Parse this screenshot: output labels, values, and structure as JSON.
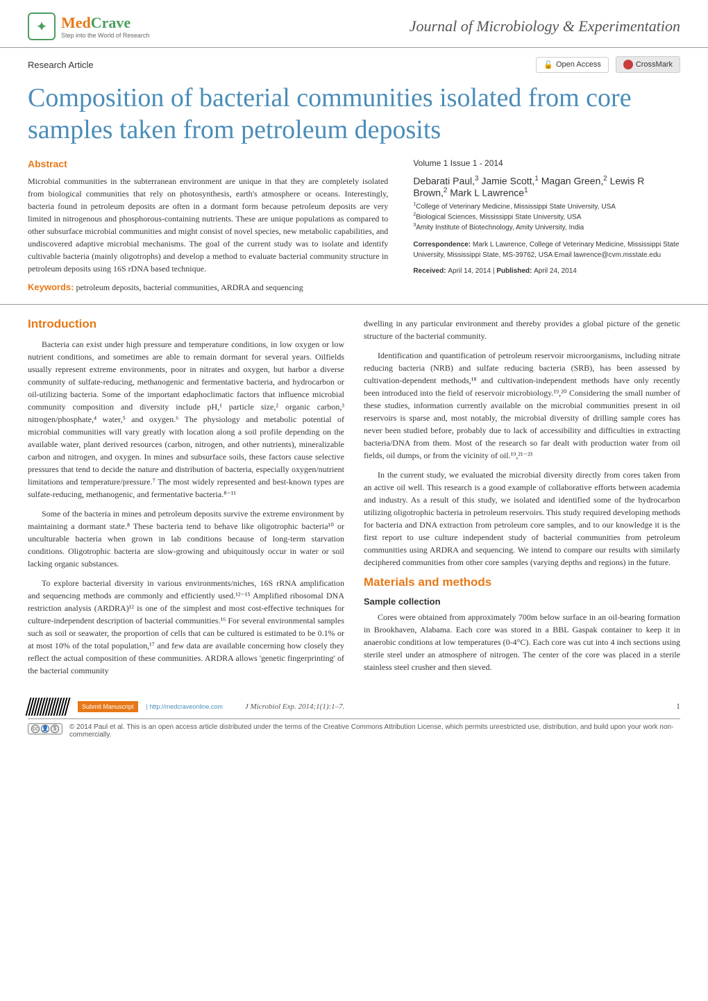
{
  "header": {
    "logo_med": "Med",
    "logo_crave": "Crave",
    "logo_tagline": "Step into the World of Research",
    "journal_name": "Journal of Microbiology & Experimentation"
  },
  "subheader": {
    "article_type": "Research Article",
    "open_access": "Open Access",
    "crossmark": "CrossMark"
  },
  "title": "Composition of bacterial communities isolated from core samples taken from petroleum deposits",
  "abstract": {
    "heading": "Abstract",
    "text": "Microbial communities in the subterranean environment are unique in that they are completely isolated from biological communities that rely on photosynthesis, earth's atmosphere or oceans. Interestingly, bacteria found in petroleum deposits are often in a dormant form because petroleum deposits are very limited in nitrogenous and phosphorous-containing nutrients. These are unique populations as compared to other subsurface microbial communities and might consist of novel species, new metabolic capabilities, and undiscovered adaptive microbial mechanisms. The goal of the current study was to isolate and identify cultivable bacteria (mainly oligotrophs) and develop a method to evaluate bacterial community structure in petroleum deposits using 16S rDNA based technique.",
    "keywords_label": "Keywords:",
    "keywords": " petroleum deposits, bacterial communities, ARDRA and sequencing"
  },
  "meta": {
    "volume_issue": "Volume 1 Issue 1 - 2014",
    "authors_html": "Debarati Paul,<sup>3</sup> Jamie Scott,<sup>1</sup> Magan Green,<sup>2</sup> Lewis R Brown,<sup>2</sup> Mark L Lawrence<sup>1</sup>",
    "affiliations_html": "<sup>1</sup>College of Veterinary Medicine, Mississippi State University, USA<br><sup>2</sup>Biological Sciences, Mississippi State University, USA<br><sup>3</sup>Amity Institute of Biotechnology, Amity University, India",
    "correspondence_label": "Correspondence: ",
    "correspondence": "Mark L Lawrence, College of Veterinary Medicine, Mississippi State University, Mississippi State, MS-39762, USA Email lawrence@cvm.msstate.edu",
    "received_label": "Received: ",
    "received": "April 14, 2014 | ",
    "published_label": "Published: ",
    "published": "April 24, 2014"
  },
  "body": {
    "intro_heading": "Introduction",
    "intro_p1": "Bacteria can exist under high pressure and temperature conditions, in low oxygen or low nutrient conditions, and sometimes are able to remain dormant for several years. Oilfields usually represent extreme environments, poor in nitrates and oxygen, but harbor a diverse community of sulfate-reducing, methanogenic and fermentative bacteria, and hydrocarbon or oil-utilizing bacteria. Some of the important edaphoclimatic factors that influence microbial community composition and diversity include pH,¹ particle size,² organic carbon,³ nitrogen/phosphate,⁴ water,⁵ and oxygen.⁶ The physiology and metabolic potential of microbial communities will vary greatly with location along a soil profile depending on the available water, plant derived resources (carbon, nitrogen, and other nutrients), mineralizable carbon and nitrogen, and oxygen. In mines and subsurface soils, these factors cause selective pressures that tend to decide the nature and distribution of bacteria, especially oxygen/nutrient limitations and temperature/pressure.⁷ The most widely represented and best-known types are sulfate-reducing, methanogenic, and fermentative bacteria.⁸⁻¹¹",
    "intro_p2": "Some of the bacteria in mines and petroleum deposits survive the extreme environment by maintaining a dormant state.⁸ These bacteria tend to behave like oligotrophic bacteria¹⁰ or unculturable bacteria when grown in lab conditions because of long-term starvation conditions. Oligotrophic bacteria are slow-growing and ubiquitously occur in water or soil lacking organic substances.",
    "intro_p3": "To explore bacterial diversity in various environments/niches, 16S rRNA amplification and sequencing methods are commonly and efficiently used.¹²⁻¹⁵ Amplified ribosomal DNA restriction analysis (ARDRA)¹² is one of the simplest and most cost-effective techniques for culture-independent description of bacterial communities.¹⁶ For several environmental samples such as soil or seawater, the proportion of cells that can be cultured is estimated to be 0.1% or at most 10% of the total population,¹⁷ and few data are available concerning how closely they reflect the actual composition of these communities. ARDRA allows 'genetic fingerprinting' of the bacterial community",
    "intro_p4": "dwelling in any particular environment and thereby provides a global picture of the genetic structure of the bacterial community.",
    "intro_p5": "Identification and quantification of petroleum reservoir microorganisms, including nitrate reducing bacteria (NRB) and sulfate reducing bacteria (SRB), has been assessed by cultivation-dependent methods,¹⁸ and cultivation-independent methods have only recently been introduced into the field of reservoir microbiology.¹⁹,²⁰ Considering the small number of these studies, information currently available on the microbial communities present in oil reservoirs is sparse and, most notably, the microbial diversity of drilling sample cores has never been studied before, probably due to lack of accessibility and difficulties in extracting bacteria/DNA from them. Most of the research so far dealt with production water from oil fields, oil dumps, or from the vicinity of oil.¹⁹,²¹⁻²³",
    "intro_p6": "In the current study, we evaluated the microbial diversity directly from cores taken from an active oil well. This research is a good example of collaborative efforts between academia and industry. As a result of this study, we isolated and identified some of the hydrocarbon utilizing oligotrophic bacteria in petroleum reservoirs. This study required developing methods for bacteria and DNA extraction from petroleum core samples, and to our knowledge it is the first report to use culture independent study of bacterial communities from petroleum communities using ARDRA and sequencing. We intend to compare our results with similarly deciphered communities from other core samples (varying depths and regions) in the future.",
    "methods_heading": "Materials and methods",
    "methods_sub": "Sample collection",
    "methods_p1": "Cores were obtained from approximately 700m below surface in an oil-bearing formation in Brookhaven, Alabama. Each core was stored in a BBL Gaspak container to keep it in anaerobic conditions at low temperatures (0-4°C). Each core was cut into 4 inch sections using sterile steel under an atmosphere of nitrogen. The center of the core was placed in a sterile stainless steel crusher and then sieved."
  },
  "footer": {
    "submit_label": "Submit Manuscript",
    "submit_url": " | http://medcraveonline.com",
    "citation": "J Microbiol Exp. 2014;1(1):1–7.",
    "page_num": "1",
    "copyright": "© 2014 Paul et al. This is an open access article distributed under the terms of the Creative Commons Attribution License, which permits unrestricted use, distribution, and build upon your work non-commercially."
  },
  "colors": {
    "orange": "#e67817",
    "green": "#4a9d5e",
    "blue": "#4a8db8",
    "text": "#333333",
    "border": "#999999"
  }
}
